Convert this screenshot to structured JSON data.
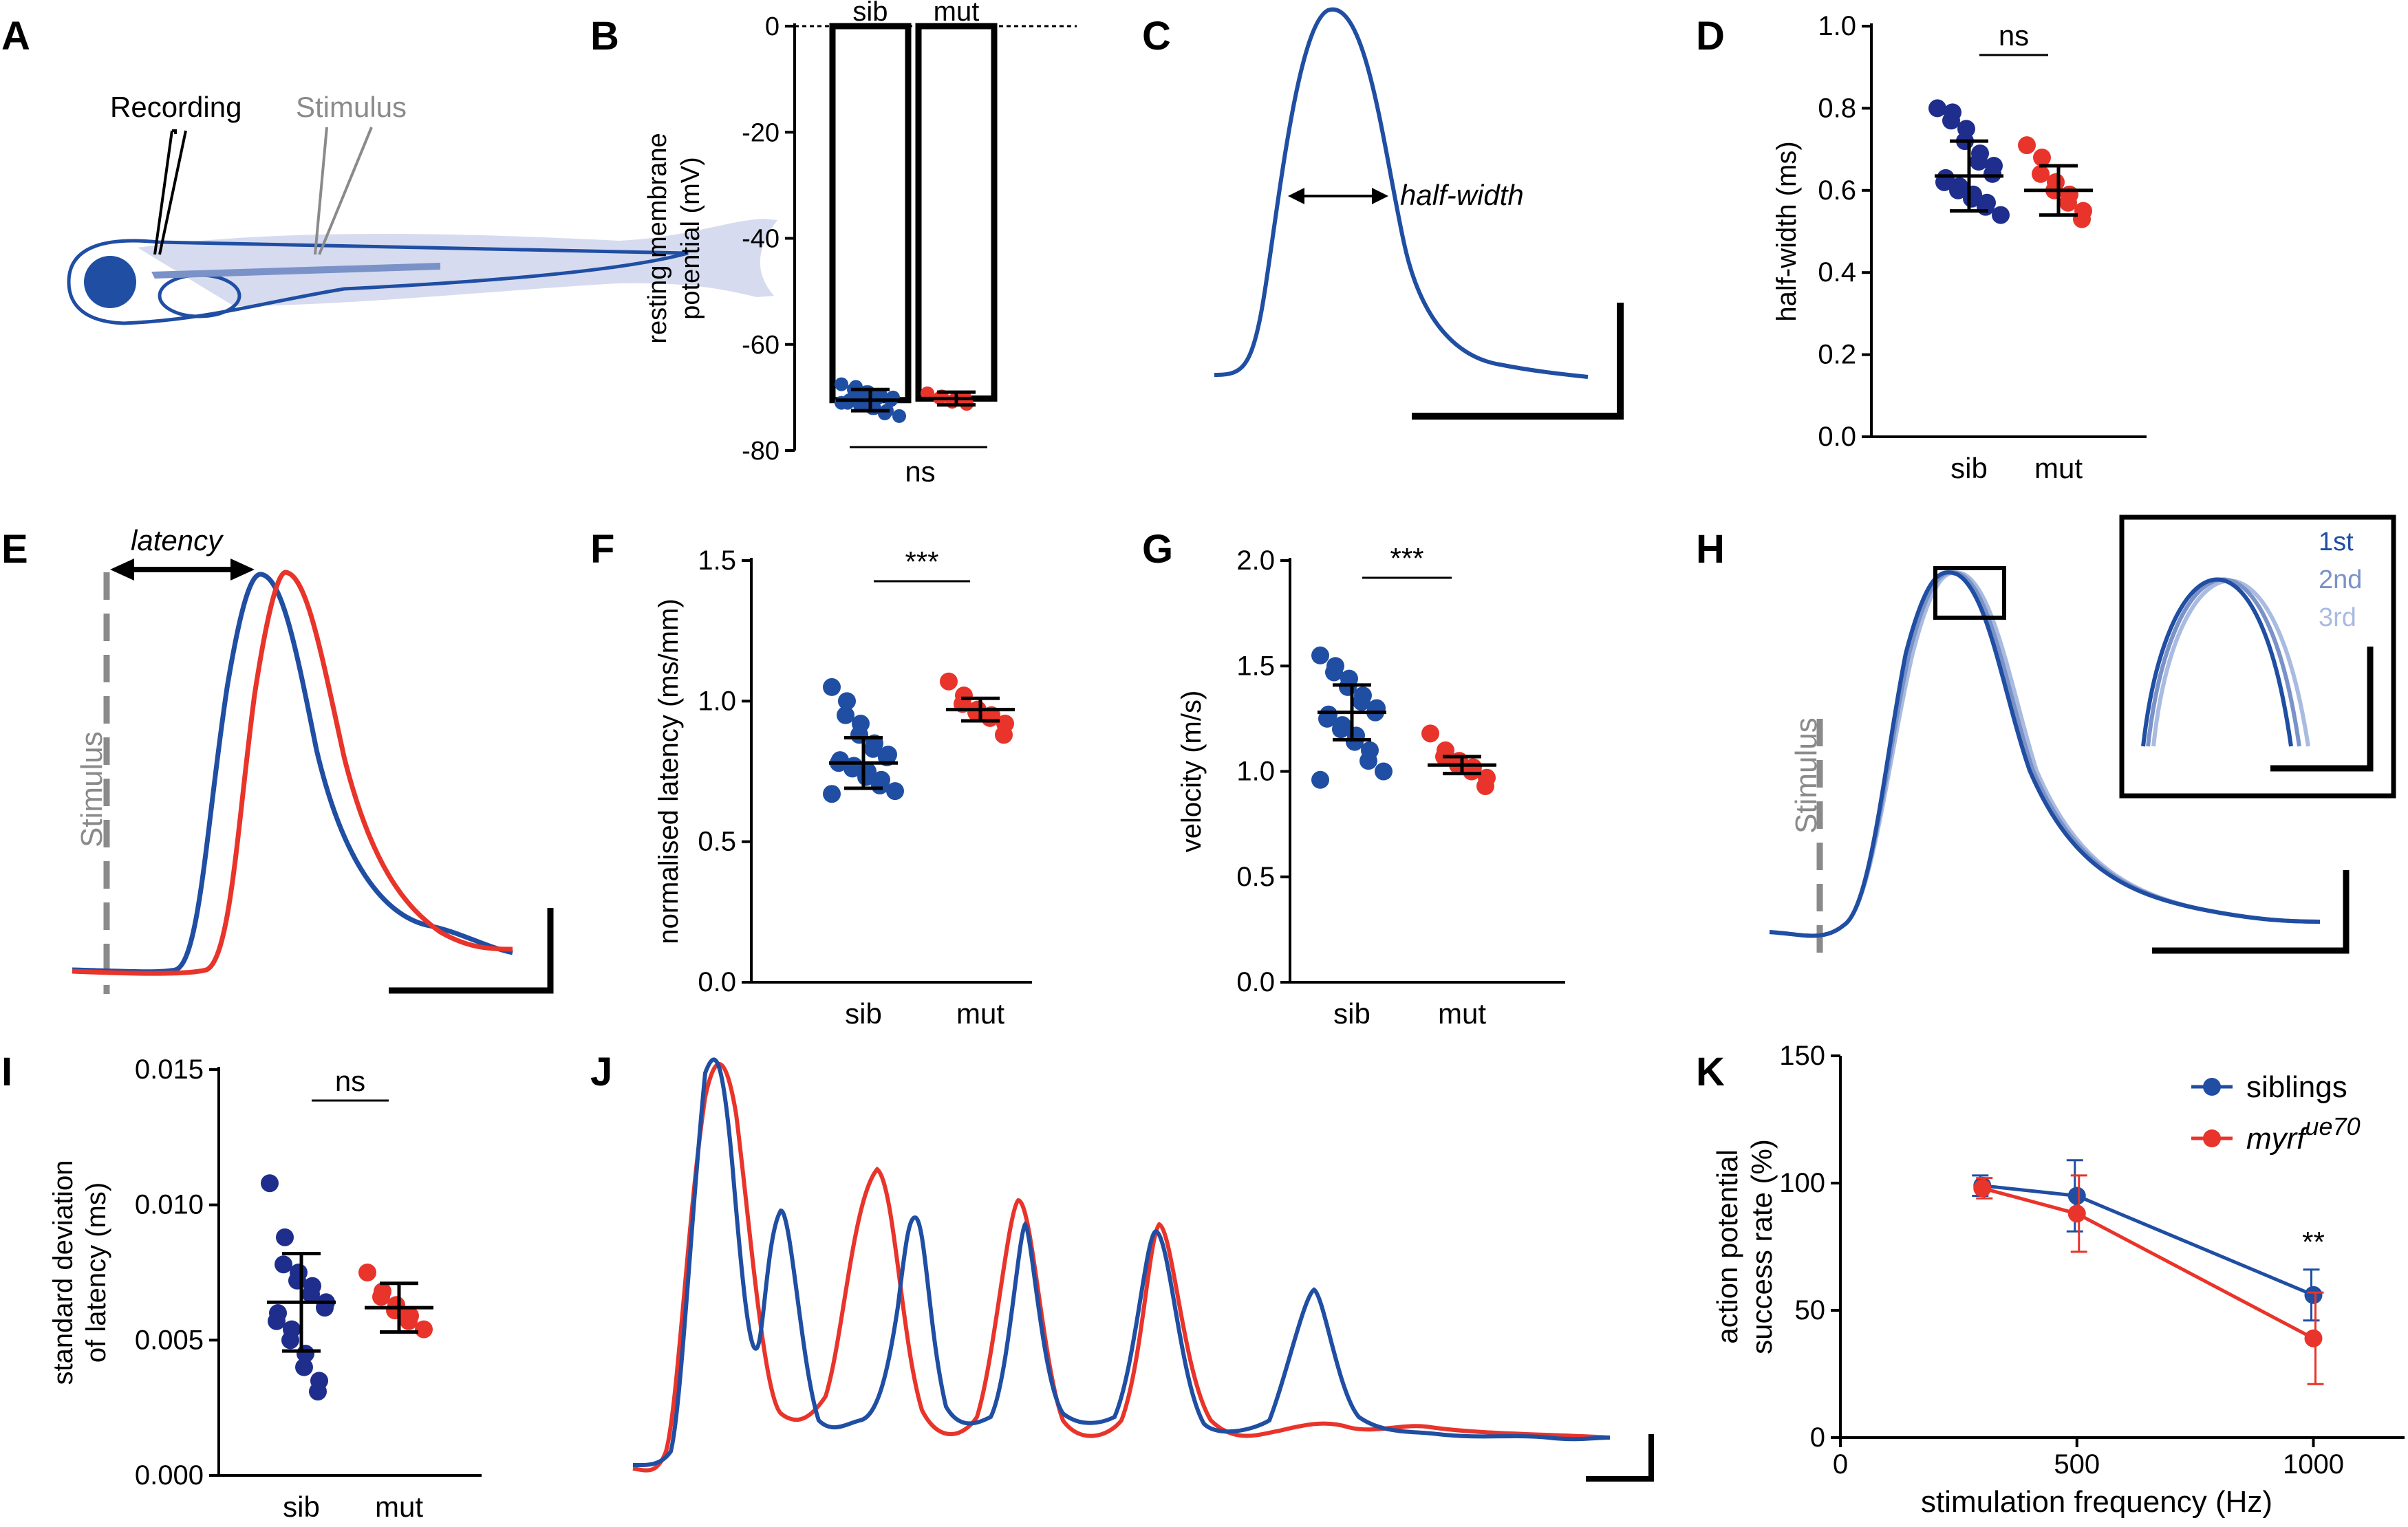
{
  "figure": {
    "panel_letters": [
      "A",
      "B",
      "C",
      "D",
      "E",
      "F",
      "G",
      "H",
      "I",
      "J",
      "K"
    ],
    "colors": {
      "blue": "#1f4ea3",
      "navy": "#1f2e8c",
      "red": "#e8342a",
      "gray": "#8a8a8a",
      "light_blue": "#d6dbef",
      "mid_blue": "#7a92c8",
      "pale_blue": "#a9bbe0"
    }
  },
  "panel_a": {
    "recording_label": "Recording",
    "stimulus_label": "Stimulus"
  },
  "panel_c": {
    "half_width_label": "half-width"
  },
  "panel_e": {
    "latency_label": "latency",
    "stimulus_label": "Stimulus"
  },
  "panel_h": {
    "stimulus_label": "Stimulus",
    "inset_labels": [
      "1st",
      "2nd",
      "3rd"
    ]
  },
  "chart_data": [
    {
      "panel": "B",
      "type": "bar",
      "categories": [
        "sib",
        "mut"
      ],
      "ylabel": "resting membrane potential (mV)",
      "ylim": [
        -80,
        0
      ],
      "yticks": [
        0,
        -20,
        -40,
        -60,
        -80
      ],
      "bar_values": [
        -70.5,
        -70.2
      ],
      "significance": "ns",
      "series": [
        {
          "name": "sib",
          "mean": -70.5,
          "sd": 2.0,
          "points": [
            -67.5,
            -68,
            -68.5,
            -69,
            -69,
            -69.5,
            -70,
            -70,
            -70.5,
            -70.5,
            -71,
            -71,
            -71.5,
            -72,
            -72,
            -72.5,
            -73,
            -73.5,
            -71,
            -69.5
          ]
        },
        {
          "name": "mut",
          "mean": -70.2,
          "sd": 1.2,
          "points": [
            -69.2,
            -69.8,
            -70.1,
            -70.5,
            -70.8,
            -71.2,
            -70.0
          ]
        }
      ]
    },
    {
      "panel": "D",
      "type": "scatter",
      "categories": [
        "sib",
        "mut"
      ],
      "ylabel": "half-width (ms)",
      "ylim": [
        0.0,
        1.0
      ],
      "yticks": [
        0.0,
        0.2,
        0.4,
        0.6,
        0.8,
        1.0
      ],
      "significance": "ns",
      "series": [
        {
          "name": "sib",
          "mean": 0.635,
          "sd": 0.085,
          "points": [
            0.8,
            0.79,
            0.77,
            0.75,
            0.72,
            0.69,
            0.67,
            0.66,
            0.64,
            0.63,
            0.62,
            0.61,
            0.6,
            0.59,
            0.58,
            0.57,
            0.56,
            0.54
          ]
        },
        {
          "name": "mut",
          "mean": 0.6,
          "sd": 0.06,
          "points": [
            0.71,
            0.68,
            0.64,
            0.62,
            0.6,
            0.59,
            0.57,
            0.55,
            0.53
          ]
        }
      ]
    },
    {
      "panel": "F",
      "type": "scatter",
      "categories": [
        "sib",
        "mut"
      ],
      "ylabel": "normalised latency (ms/mm)",
      "ylim": [
        0.0,
        1.5
      ],
      "yticks": [
        0.0,
        0.5,
        1.0,
        1.5
      ],
      "significance": "***",
      "series": [
        {
          "name": "sib",
          "mean": 0.78,
          "sd": 0.09,
          "points": [
            1.05,
            1.0,
            0.95,
            0.92,
            0.88,
            0.85,
            0.83,
            0.81,
            0.8,
            0.79,
            0.78,
            0.77,
            0.76,
            0.75,
            0.73,
            0.72,
            0.7,
            0.68,
            0.67
          ]
        },
        {
          "name": "mut",
          "mean": 0.97,
          "sd": 0.04,
          "points": [
            1.07,
            1.02,
            0.99,
            0.97,
            0.96,
            0.95,
            0.94,
            0.92,
            0.88
          ]
        }
      ]
    },
    {
      "panel": "G",
      "type": "scatter",
      "categories": [
        "sib",
        "mut"
      ],
      "ylabel": "velocity (m/s)",
      "ylim": [
        0.0,
        2.0
      ],
      "yticks": [
        0.0,
        0.5,
        1.0,
        1.5,
        2.0
      ],
      "significance": "***",
      "series": [
        {
          "name": "sib",
          "mean": 1.28,
          "sd": 0.13,
          "points": [
            1.55,
            1.5,
            1.47,
            1.44,
            1.4,
            1.36,
            1.33,
            1.3,
            1.28,
            1.27,
            1.25,
            1.22,
            1.2,
            1.17,
            1.14,
            1.1,
            1.05,
            1.0,
            0.96
          ]
        },
        {
          "name": "mut",
          "mean": 1.03,
          "sd": 0.04,
          "points": [
            1.18,
            1.1,
            1.07,
            1.05,
            1.03,
            1.02,
            1.0,
            0.97,
            0.93
          ]
        }
      ]
    },
    {
      "panel": "I",
      "type": "scatter",
      "categories": [
        "sib",
        "mut"
      ],
      "ylabel": "standard deviation of latency (ms)",
      "ylim": [
        0.0,
        0.015
      ],
      "yticks": [
        0.0,
        0.005,
        0.01,
        0.015
      ],
      "ytick_labels": [
        "0.000",
        "0.005",
        "0.010",
        "0.015"
      ],
      "significance": "ns",
      "series": [
        {
          "name": "sib",
          "mean": 0.0064,
          "sd": 0.0018,
          "points": [
            0.0108,
            0.0088,
            0.0078,
            0.0075,
            0.0072,
            0.007,
            0.0067,
            0.0064,
            0.0062,
            0.006,
            0.0057,
            0.0054,
            0.005,
            0.0045,
            0.004,
            0.0035,
            0.0031
          ]
        },
        {
          "name": "mut",
          "mean": 0.0062,
          "sd": 0.0009,
          "points": [
            0.0075,
            0.0068,
            0.0066,
            0.0063,
            0.0061,
            0.0059,
            0.0057,
            0.0054
          ]
        }
      ]
    },
    {
      "panel": "K",
      "type": "line",
      "xlabel": "stimulation frequency (Hz)",
      "ylabel": "action potential success rate (%)",
      "xlim": [
        0,
        1200
      ],
      "xticks": [
        0,
        500,
        1000
      ],
      "ylim": [
        0,
        150
      ],
      "yticks": [
        0,
        50,
        100,
        150
      ],
      "annotation": "**",
      "legend_position": "top-right",
      "legend": [
        {
          "label": "siblings",
          "color": "#1f4ea3"
        },
        {
          "label_main": "myrf",
          "label_sup": "ue70",
          "color": "#e8342a"
        }
      ],
      "series": [
        {
          "name": "siblings",
          "x": [
            300,
            500,
            1000
          ],
          "y": [
            99,
            95,
            56
          ],
          "err": [
            4,
            14,
            10
          ]
        },
        {
          "name": "myrf ue70",
          "x": [
            300,
            500,
            1000
          ],
          "y": [
            98,
            88,
            39
          ],
          "err": [
            4,
            15,
            18
          ]
        }
      ]
    }
  ]
}
